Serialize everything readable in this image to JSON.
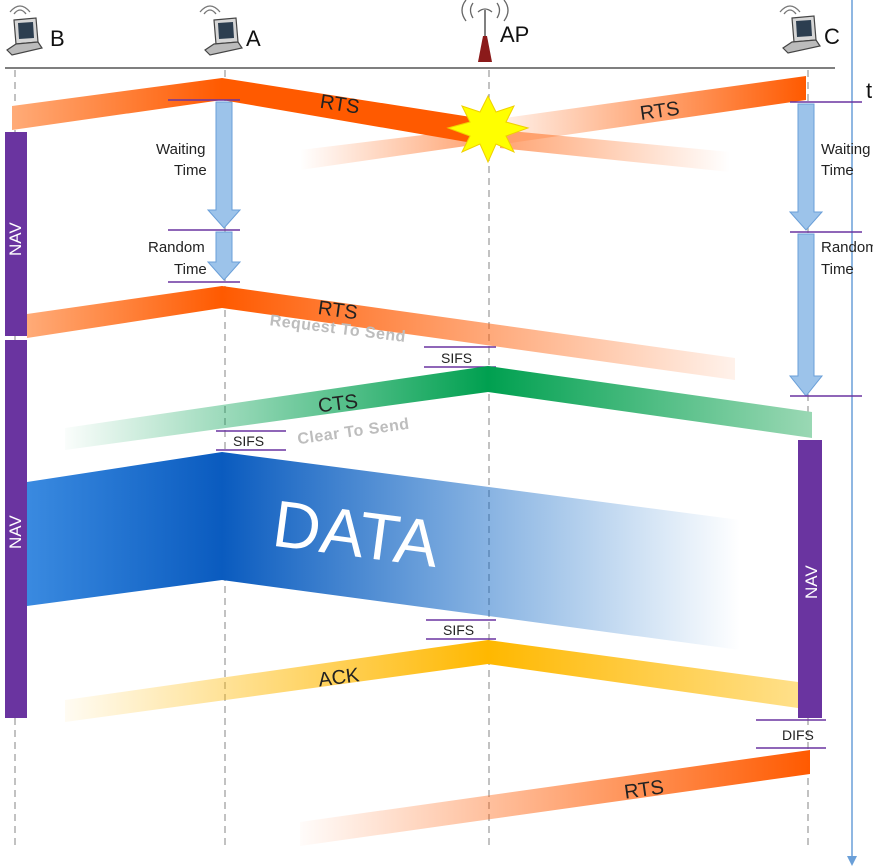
{
  "stations": {
    "b": "B",
    "a": "A",
    "ap": "AP",
    "c": "C"
  },
  "time_axis_label": "t",
  "frames": {
    "rts_a1": "RTS",
    "rts_c1": "RTS",
    "rts_a2": "RTS",
    "request_to_send": "Request To Send",
    "cts": "CTS",
    "clear_to_send": "Clear To Send",
    "data": "DATA",
    "ack": "ACK",
    "rts_c2": "RTS"
  },
  "timers": {
    "waiting_a_1": "Waiting",
    "waiting_a_2": "Time",
    "random_a_1": "Random",
    "random_a_2": "Time",
    "waiting_c_1": "Waiting",
    "waiting_c_2": "Time",
    "random_c_1": "Random",
    "random_c_2": "Time"
  },
  "intervals": {
    "sifs_ap_1": "SIFS",
    "sifs_a": "SIFS",
    "sifs_ap_2": "SIFS",
    "difs_c": "DIFS"
  },
  "nav": {
    "b_1": "NAV",
    "b_2": "NAV",
    "c_1": "NAV"
  },
  "colors": {
    "rts": "#ff5a00",
    "cts": "#00a050",
    "data": "#0a6ac8",
    "ack": "#ffb800",
    "nav": "#6a34a0",
    "timer_arrow": "#9cc3ea",
    "marker": "#6a34a0"
  }
}
